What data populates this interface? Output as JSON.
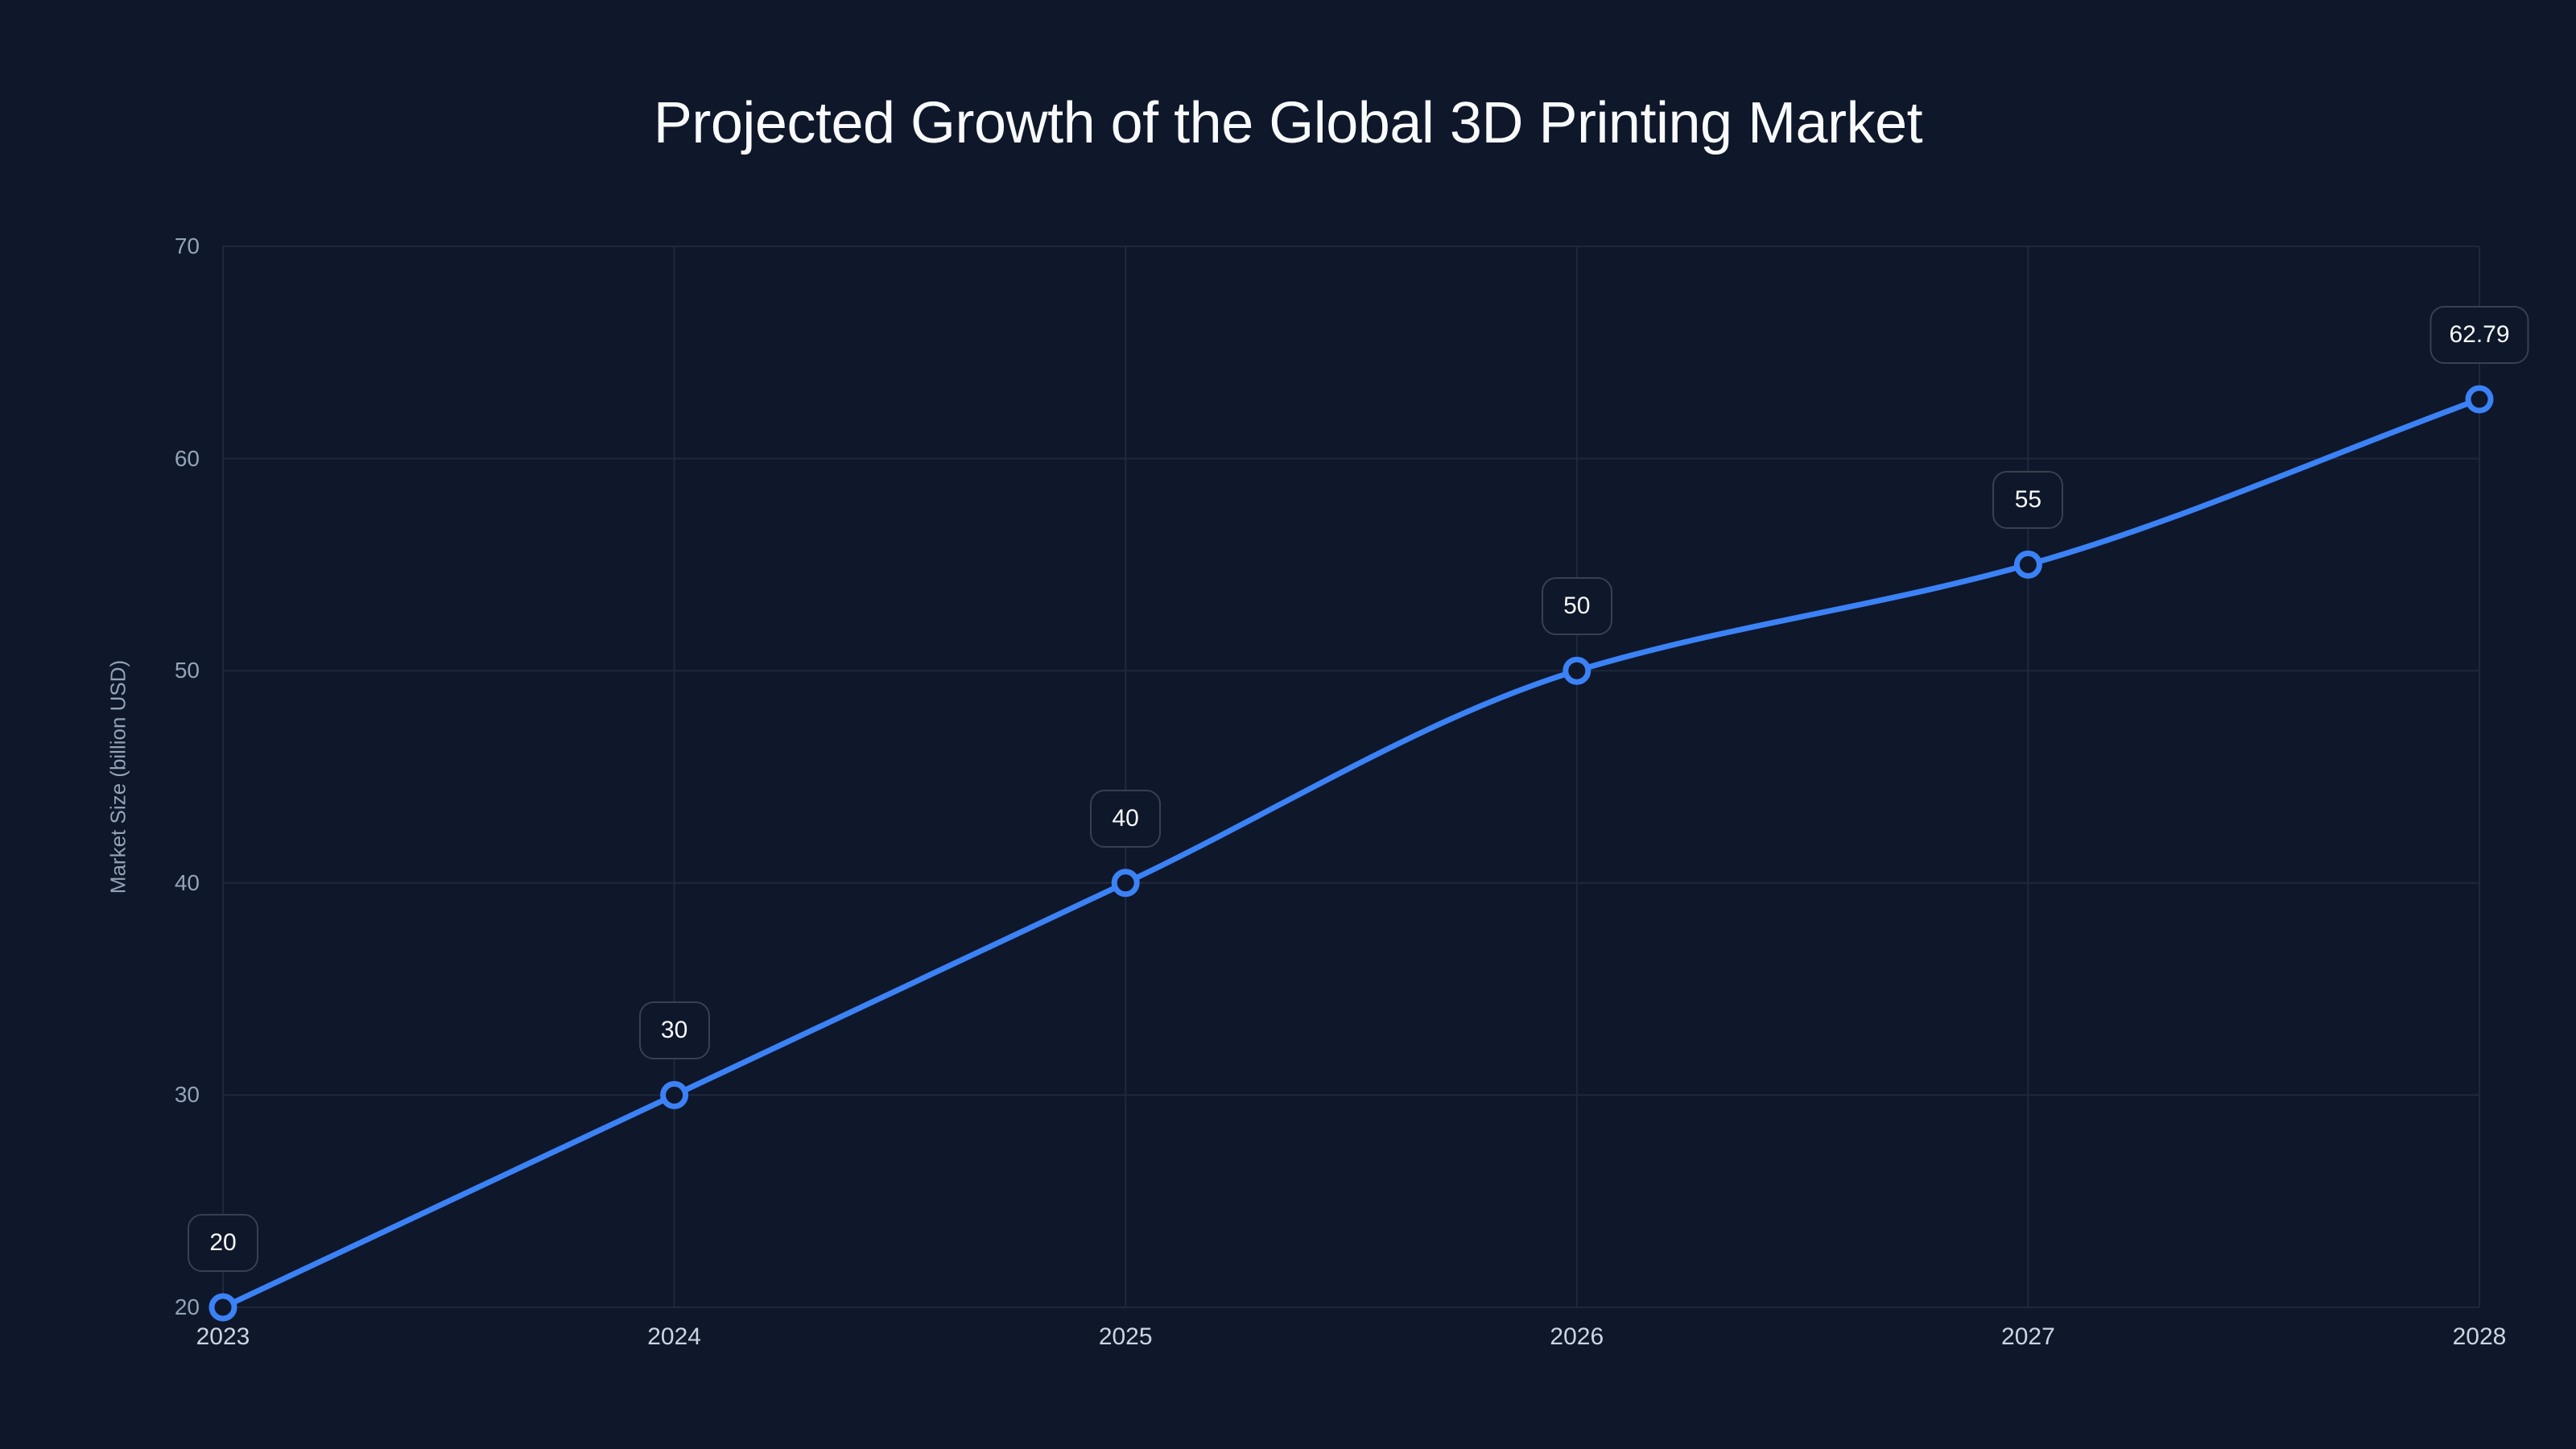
{
  "chart": {
    "title": "Projected Growth of the Global 3D Printing Market",
    "ylabel": "Market Size (billion USD)",
    "y_ticks": [
      "70",
      "60",
      "50",
      "40",
      "30",
      "20"
    ],
    "x_ticks": [
      "2023",
      "2024",
      "2025",
      "2026",
      "2027",
      "2028"
    ],
    "data_labels": [
      "20",
      "30",
      "40",
      "50",
      "55",
      "62.79"
    ]
  },
  "colors": {
    "background": "#0f172a",
    "line": "#3b82f6",
    "grid": "#1e293b",
    "label_border": "#374151",
    "tick_text": "#94a3b8"
  },
  "chart_data": {
    "type": "line",
    "title": "Projected Growth of the Global 3D Printing Market",
    "xlabel": "",
    "ylabel": "Market Size (billion USD)",
    "x": [
      "2023",
      "2024",
      "2025",
      "2026",
      "2027",
      "2028"
    ],
    "series": [
      {
        "name": "Market Size",
        "values": [
          20,
          30,
          40,
          50,
          55,
          62.79
        ],
        "color": "#3b82f6"
      }
    ],
    "ylim": [
      20,
      70
    ],
    "y_ticks": [
      20,
      30,
      40,
      50,
      60,
      70
    ],
    "grid": true,
    "legend": "none",
    "data_labels": true,
    "smooth": true
  }
}
